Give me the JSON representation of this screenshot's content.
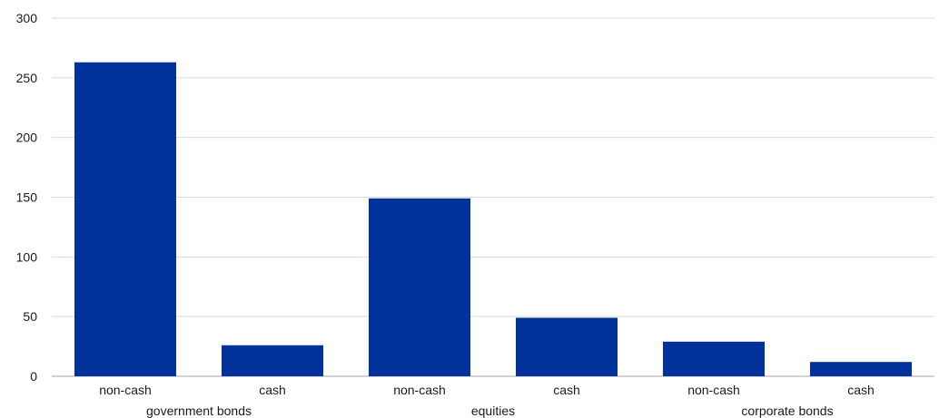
{
  "chart_data": {
    "type": "bar",
    "title": "",
    "xlabel": "",
    "ylabel": "",
    "ylim": [
      0,
      300
    ],
    "yticks": [
      0,
      50,
      100,
      150,
      200,
      250,
      300
    ],
    "grid": true,
    "legend": "none",
    "bar_color": "#003299",
    "grid_color": "#d9d9d9",
    "axis_color": "#a6a6a6",
    "groups": [
      "government bonds",
      "equities",
      "corporate bonds"
    ],
    "categories": [
      "non-cash",
      "cash",
      "non-cash",
      "cash",
      "non-cash",
      "cash"
    ],
    "category_group_index": [
      0,
      0,
      1,
      1,
      2,
      2
    ],
    "values": [
      263,
      26,
      149,
      49,
      29,
      12
    ]
  }
}
